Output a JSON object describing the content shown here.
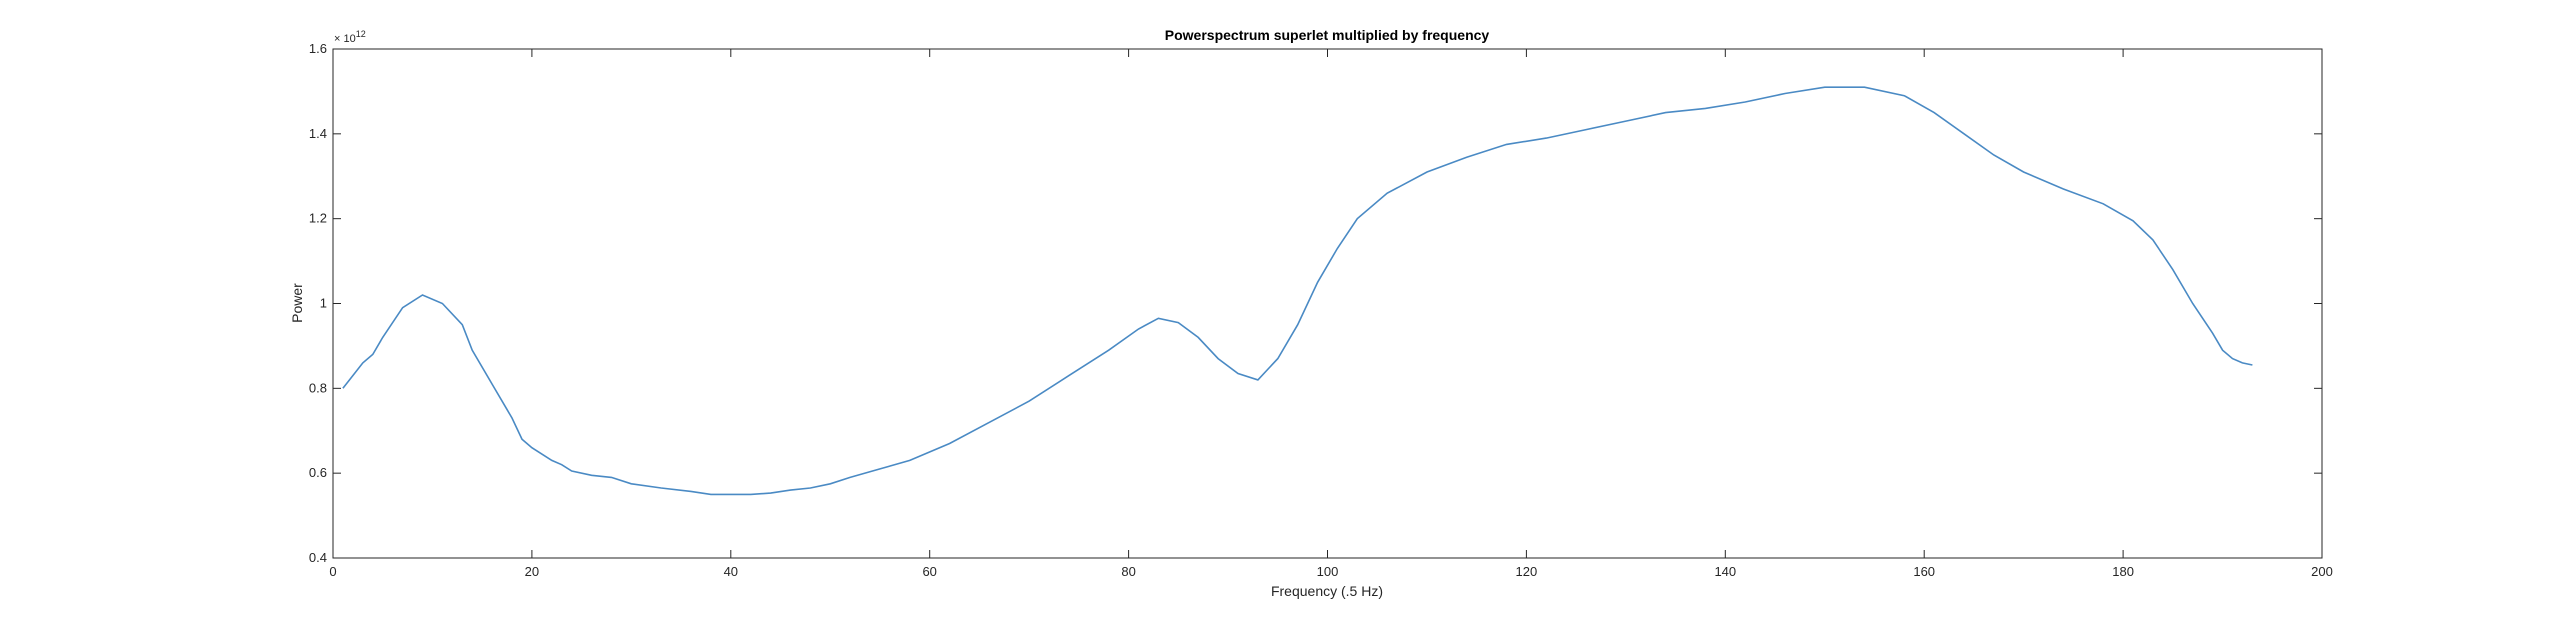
{
  "chart_data": {
    "type": "line",
    "title": "Powerspectrum superlet multiplied by frequency",
    "xlabel": "Frequency (.5 Hz)",
    "ylabel": "Power",
    "y_exponent_label": "× 10^12",
    "y_exponent_base": "× 10",
    "y_exponent_power": "12",
    "xlim": [
      0,
      200
    ],
    "ylim": [
      0.4,
      1.6
    ],
    "x_ticks": [
      "0",
      "20",
      "40",
      "60",
      "80",
      "100",
      "120",
      "140",
      "160",
      "180",
      "200"
    ],
    "y_ticks": [
      "0.4",
      "0.6",
      "0.8",
      "1",
      "1.2",
      "1.4",
      "1.6"
    ],
    "grid": false,
    "line_color": "#4a8ac4",
    "series": [
      {
        "x": [
          1,
          3,
          4,
          5,
          7,
          9,
          11,
          13,
          14,
          16,
          18,
          19,
          20,
          22,
          23,
          24,
          26,
          28,
          30,
          33,
          36,
          38,
          40,
          42,
          44,
          46,
          48,
          50,
          52,
          55,
          58,
          62,
          66,
          70,
          74,
          78,
          81,
          83,
          85,
          87,
          89,
          91,
          93,
          95,
          97,
          99,
          101,
          103,
          106,
          110,
          114,
          118,
          122,
          126,
          130,
          134,
          138,
          142,
          146,
          150,
          154,
          158,
          161,
          164,
          167,
          170,
          174,
          178,
          181,
          183,
          185,
          187,
          189,
          190,
          191,
          192,
          193
        ],
        "values": [
          0.8,
          0.86,
          0.88,
          0.92,
          0.99,
          1.02,
          1.0,
          0.95,
          0.89,
          0.81,
          0.73,
          0.68,
          0.66,
          0.63,
          0.62,
          0.605,
          0.595,
          0.59,
          0.575,
          0.565,
          0.557,
          0.55,
          0.55,
          0.55,
          0.553,
          0.56,
          0.565,
          0.575,
          0.59,
          0.61,
          0.63,
          0.67,
          0.72,
          0.77,
          0.83,
          0.89,
          0.94,
          0.965,
          0.955,
          0.92,
          0.87,
          0.835,
          0.82,
          0.87,
          0.95,
          1.05,
          1.13,
          1.2,
          1.26,
          1.31,
          1.345,
          1.375,
          1.39,
          1.41,
          1.43,
          1.45,
          1.46,
          1.475,
          1.495,
          1.51,
          1.51,
          1.49,
          1.45,
          1.4,
          1.35,
          1.31,
          1.27,
          1.235,
          1.195,
          1.15,
          1.08,
          1.0,
          0.93,
          0.89,
          0.87,
          0.86,
          0.855
        ]
      }
    ]
  }
}
